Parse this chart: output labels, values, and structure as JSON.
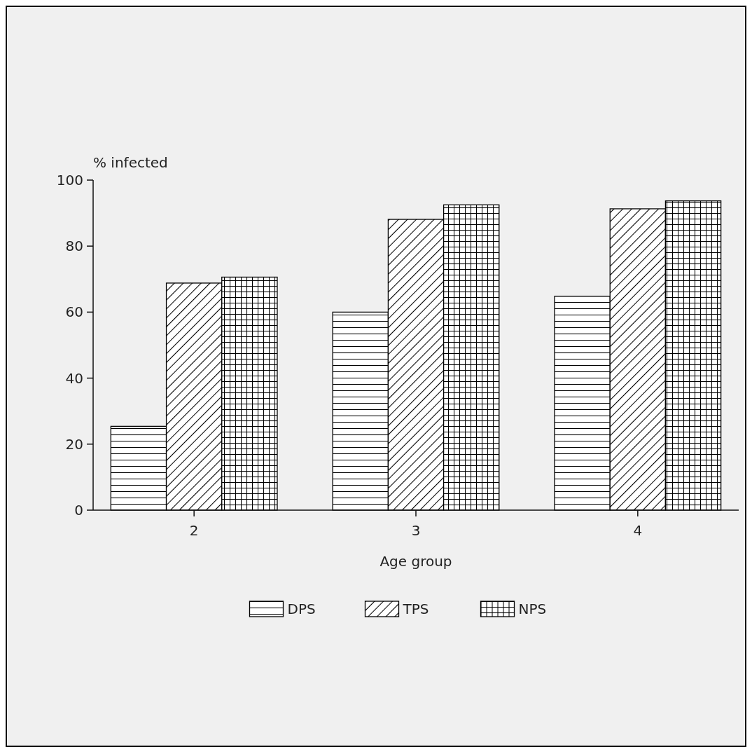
{
  "chart_data": {
    "type": "bar",
    "xlabel": "Age group",
    "ylabel": "% infected",
    "categories": [
      "2",
      "3",
      "4"
    ],
    "series": [
      {
        "name": "DPS",
        "color": "#000000",
        "values": [
          25.4,
          60,
          64.8
        ]
      },
      {
        "name": "TPS",
        "color": "#000000",
        "values": [
          68.8,
          88.1,
          91.3
        ]
      },
      {
        "name": "NPS",
        "color": "#000000",
        "values": [
          70.6,
          92.5,
          93.7
        ]
      }
    ],
    "ylim": [
      0,
      100
    ],
    "yticks": [
      0,
      20,
      40,
      60,
      80,
      100
    ],
    "grid": false,
    "legend": "bottom"
  }
}
